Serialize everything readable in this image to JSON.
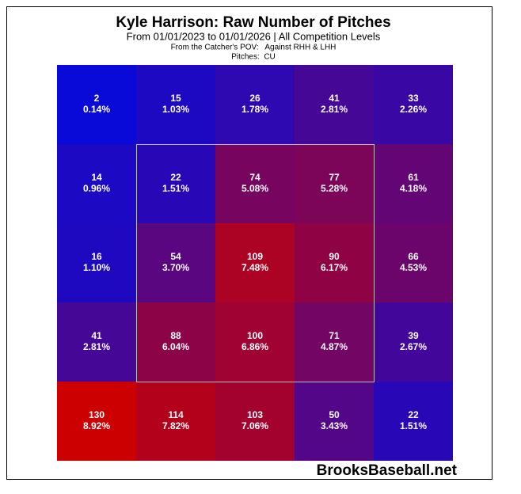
{
  "chart_data": {
    "type": "heatmap",
    "title": "Kyle Harrison: Raw Number of Pitches",
    "subtitle": "From 01/01/2023 to 01/01/2026 | All Competition Levels",
    "notes": [
      "From the Catcher's POV:   Against RHH & LHH",
      "Pitches:  CU"
    ],
    "watermark": "BrooksBaseball.net",
    "values": [
      [
        2,
        15,
        26,
        41,
        33
      ],
      [
        14,
        22,
        74,
        77,
        61
      ],
      [
        16,
        54,
        109,
        90,
        66
      ],
      [
        41,
        88,
        100,
        71,
        39
      ],
      [
        130,
        114,
        103,
        50,
        22
      ]
    ],
    "share_labels": [
      [
        "0.14%",
        "1.03%",
        "1.78%",
        "2.81%",
        "2.26%"
      ],
      [
        "0.96%",
        "1.51%",
        "5.08%",
        "5.28%",
        "4.18%"
      ],
      [
        "1.10%",
        "3.70%",
        "7.48%",
        "6.17%",
        "4.53%"
      ],
      [
        "2.81%",
        "6.04%",
        "6.86%",
        "4.87%",
        "2.67%"
      ],
      [
        "8.92%",
        "7.82%",
        "7.06%",
        "3.43%",
        "1.51%"
      ]
    ],
    "colormap": {
      "low": "#0a0ad8",
      "high": "#cc0000"
    },
    "strike_zone": true
  }
}
